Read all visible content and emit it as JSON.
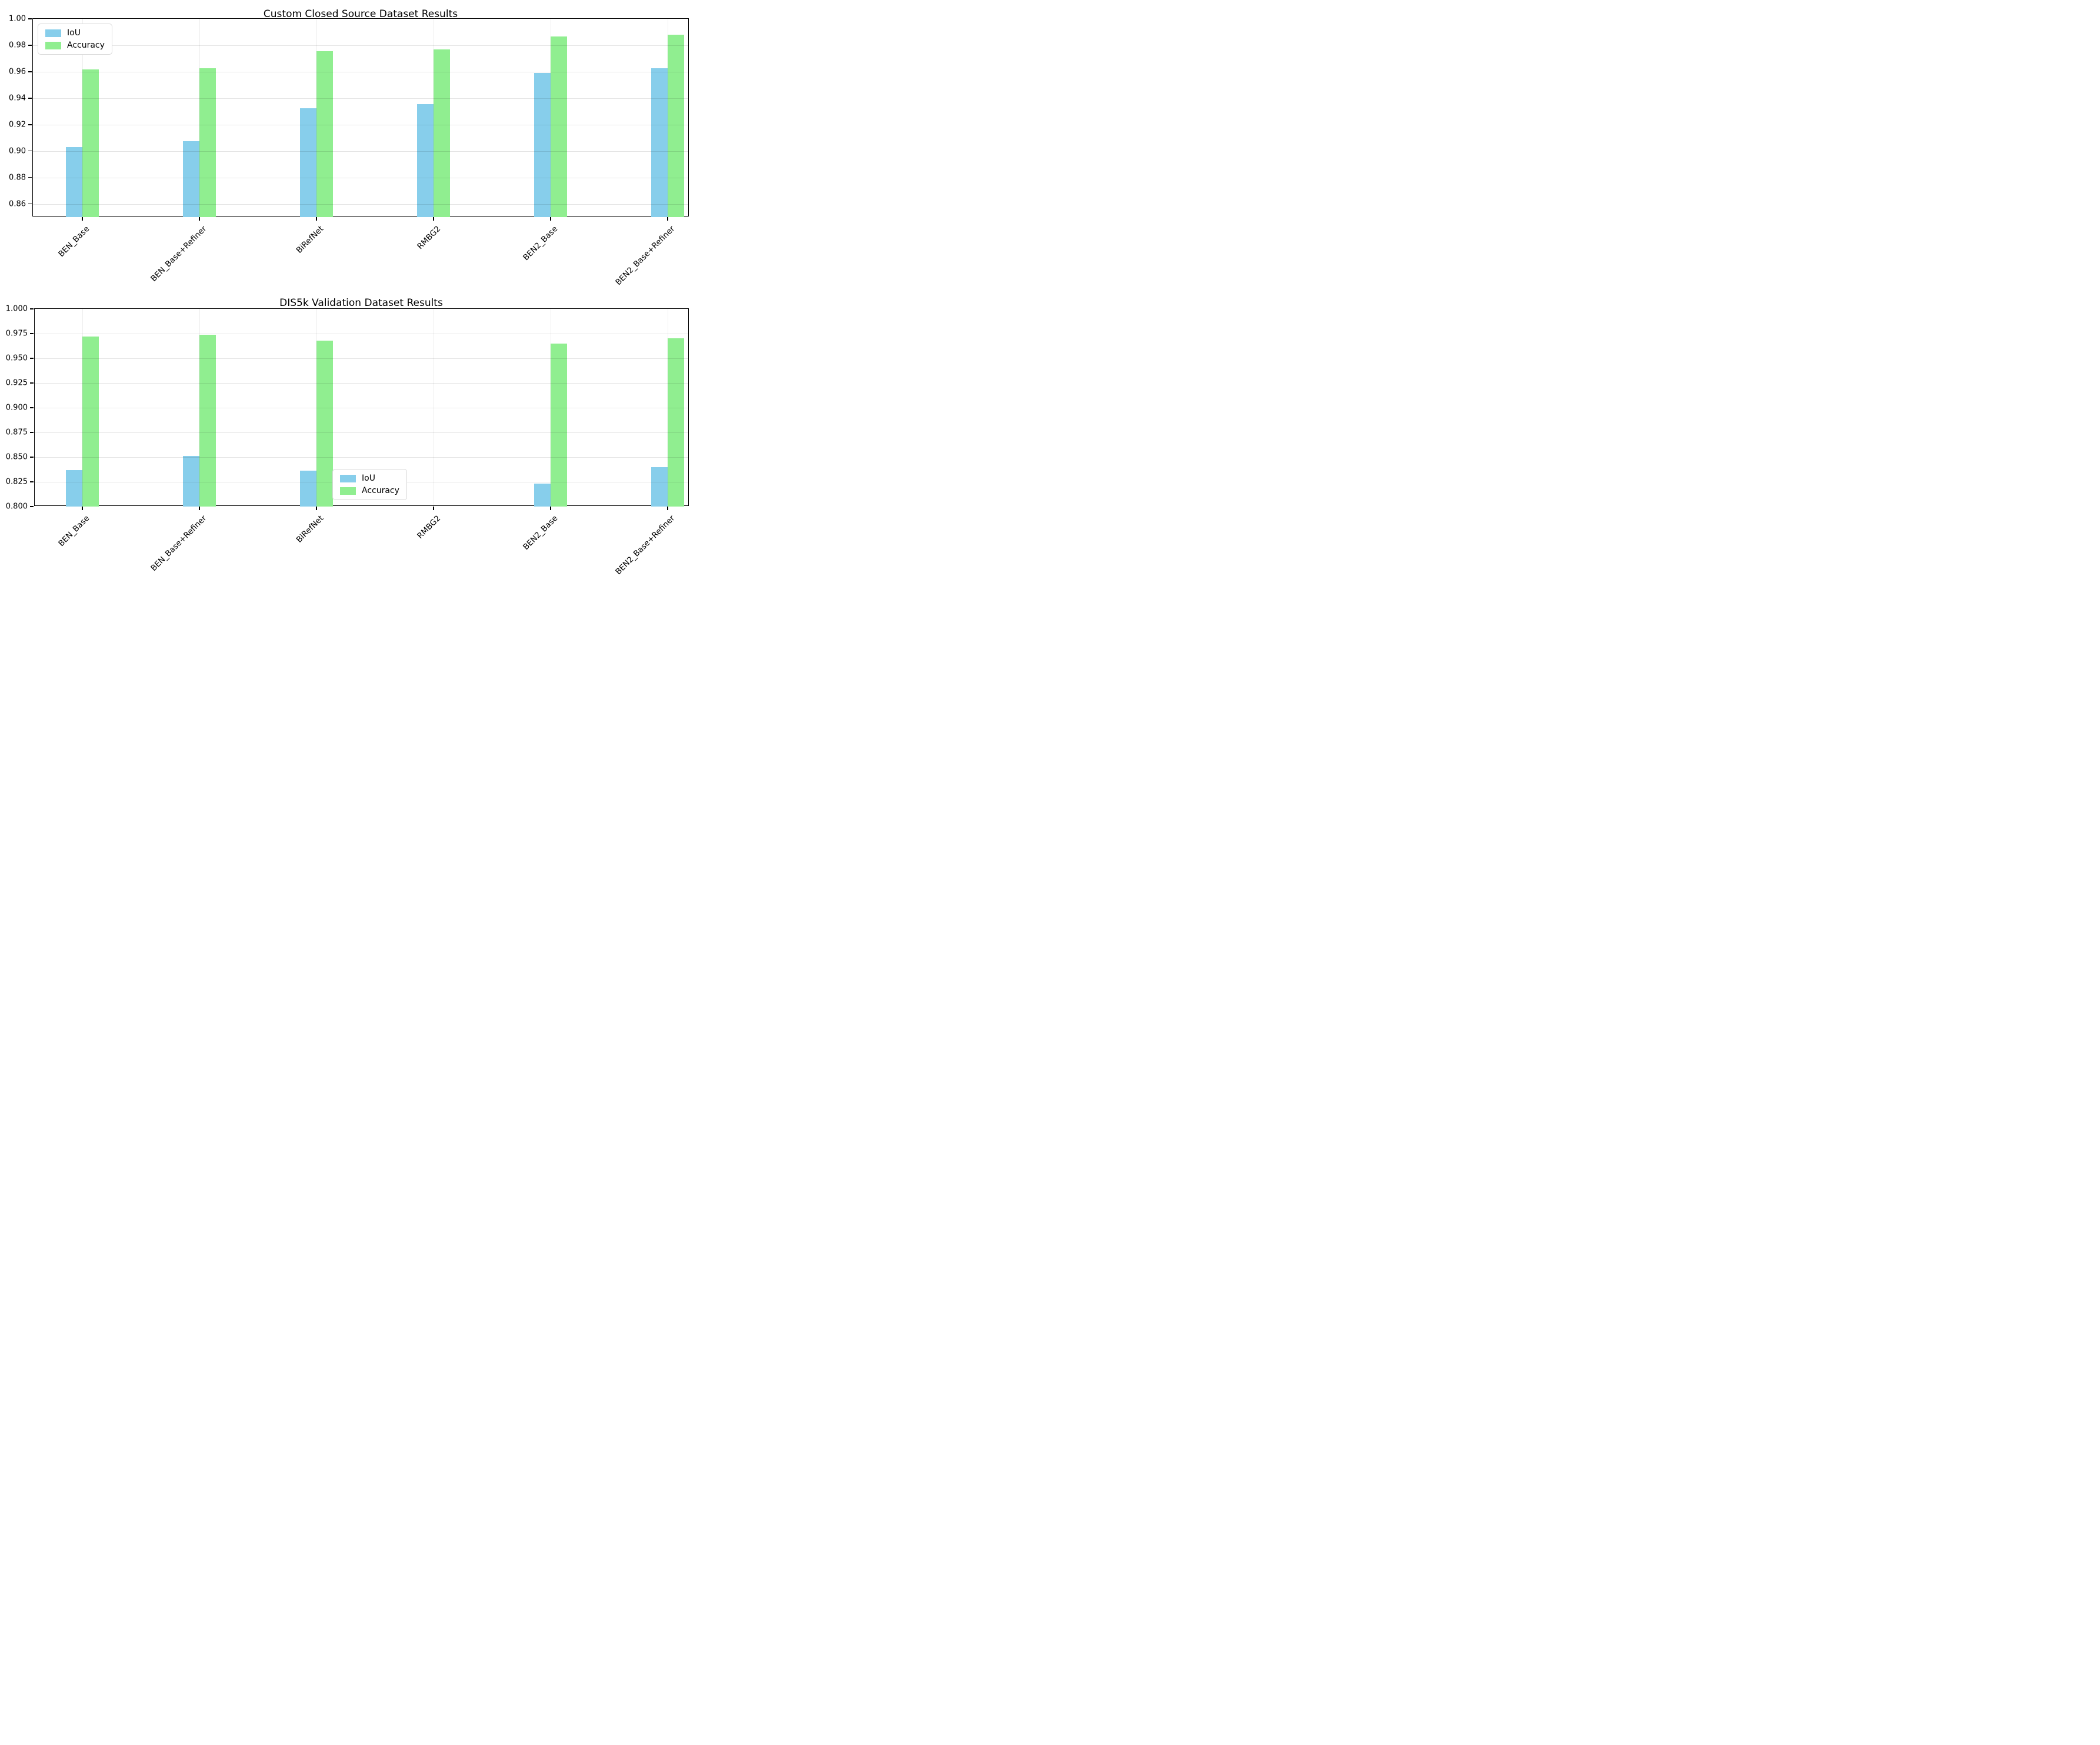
{
  "figure": {
    "background": "#ffffff"
  },
  "colors": {
    "iou": "#87CEEB",
    "accuracy": "#90EE90",
    "grid": "#e6e6e6",
    "spine": "#000000"
  },
  "legend": {
    "items": [
      {
        "label": "IoU",
        "color_key": "iou"
      },
      {
        "label": "Accuracy",
        "color_key": "accuracy"
      }
    ]
  },
  "chart_data": [
    {
      "type": "bar",
      "title": "Custom Closed Source Dataset Results",
      "categories": [
        "BEN_Base",
        "BEN_Base+Refiner",
        "BiRefNet",
        "RMBG2",
        "BEN2_Base",
        "BEN2_Base+Refiner"
      ],
      "series": [
        {
          "name": "IoU",
          "color_key": "iou",
          "values": [
            0.903,
            0.9076,
            0.9323,
            0.9353,
            0.959,
            0.9628
          ]
        },
        {
          "name": "Accuracy",
          "color_key": "accuracy",
          "values": [
            0.9615,
            0.9627,
            0.9756,
            0.977,
            0.9867,
            0.9878
          ]
        }
      ],
      "xlabel": "",
      "ylabel": "",
      "ylim": [
        0.85,
        1.0
      ],
      "yticks": [
        {
          "value": 1.0,
          "label": "1.00"
        },
        {
          "value": 0.98,
          "label": "0.98"
        },
        {
          "value": 0.96,
          "label": "0.96"
        },
        {
          "value": 0.94,
          "label": "0.94"
        },
        {
          "value": 0.92,
          "label": "0.92"
        },
        {
          "value": 0.9,
          "label": "0.90"
        },
        {
          "value": 0.88,
          "label": "0.88"
        },
        {
          "value": 0.86,
          "label": "0.86"
        }
      ],
      "grid": true,
      "legend_position": "upper left"
    },
    {
      "type": "bar",
      "title": "DIS5k Validation Dataset Results",
      "categories": [
        "BEN_Base",
        "BEN_Base+Refiner",
        "BiRefNet",
        "RMBG2",
        "BEN2_Base",
        "BEN2_Base+Refiner"
      ],
      "series": [
        {
          "name": "IoU",
          "color_key": "iou",
          "values": [
            0.837,
            0.851,
            0.8365,
            null,
            0.8235,
            0.84
          ]
        },
        {
          "name": "Accuracy",
          "color_key": "accuracy",
          "values": [
            0.972,
            0.974,
            0.968,
            null,
            0.965,
            0.97
          ]
        }
      ],
      "xlabel": "",
      "ylabel": "",
      "ylim": [
        0.8,
        1.0
      ],
      "yticks": [
        {
          "value": 1.0,
          "label": "1.000"
        },
        {
          "value": 0.975,
          "label": "0.975"
        },
        {
          "value": 0.95,
          "label": "0.950"
        },
        {
          "value": 0.925,
          "label": "0.925"
        },
        {
          "value": 0.9,
          "label": "0.900"
        },
        {
          "value": 0.875,
          "label": "0.875"
        },
        {
          "value": 0.85,
          "label": "0.850"
        },
        {
          "value": 0.825,
          "label": "0.825"
        },
        {
          "value": 0.8,
          "label": "0.800"
        }
      ],
      "grid": true,
      "legend_position": "lower center"
    }
  ]
}
